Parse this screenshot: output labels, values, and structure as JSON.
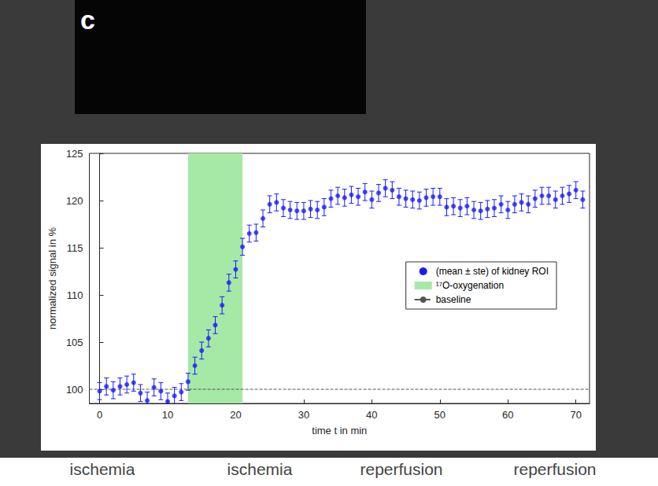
{
  "chart_data": {
    "type": "scatter",
    "panel_label": "c",
    "xlabel": "time t in min",
    "ylabel": "normalized signal in %",
    "x": [
      0,
      1,
      2,
      3,
      4,
      5,
      6,
      7,
      8,
      9,
      10,
      11,
      12,
      13,
      14,
      15,
      16,
      17,
      18,
      19,
      20,
      21,
      22,
      23,
      24,
      25,
      26,
      27,
      28,
      29,
      30,
      31,
      32,
      33,
      34,
      35,
      36,
      37,
      38,
      39,
      40,
      41,
      42,
      43,
      44,
      45,
      46,
      47,
      48,
      49,
      50,
      51,
      52,
      53,
      54,
      55,
      56,
      57,
      58,
      59,
      60,
      61,
      62,
      63,
      64,
      65,
      66,
      67,
      68,
      69,
      70,
      71
    ],
    "series": [
      {
        "name": "(mean ± ste) of kidney ROI",
        "color": "#1a1aff",
        "marker": "circle",
        "values": [
          99.8,
          100.3,
          99.9,
          100.3,
          100.5,
          100.7,
          99.6,
          98.8,
          100.2,
          99.8,
          98.7,
          99.3,
          99.7,
          100.8,
          102.5,
          104.1,
          105.4,
          106.8,
          108.9,
          111.3,
          112.7,
          115.1,
          116.5,
          116.6,
          118.1,
          119.6,
          119.8,
          119.2,
          119.0,
          118.9,
          118.9,
          119.1,
          119.0,
          119.3,
          120.2,
          120.5,
          120.3,
          120.6,
          120.4,
          120.9,
          120.1,
          120.8,
          121.3,
          121.1,
          120.4,
          120.2,
          120.1,
          120.0,
          120.3,
          120.4,
          120.4,
          119.3,
          119.4,
          119.2,
          119.4,
          119.0,
          118.9,
          119.1,
          119.2,
          119.6,
          119.0,
          119.6,
          119.8,
          119.6,
          120.2,
          120.5,
          120.5,
          120.1,
          120.5,
          120.7,
          121.1,
          120.1
        ],
        "errors": [
          0.9,
          0.9,
          0.9,
          0.9,
          0.9,
          0.9,
          0.9,
          0.9,
          0.9,
          0.9,
          0.9,
          0.9,
          0.9,
          0.9,
          0.9,
          0.9,
          0.9,
          0.9,
          0.9,
          0.9,
          0.9,
          0.9,
          0.9,
          0.9,
          0.9,
          0.9,
          0.9,
          0.9,
          0.9,
          0.9,
          0.9,
          0.9,
          0.9,
          0.9,
          0.9,
          0.9,
          0.9,
          0.9,
          0.9,
          0.9,
          0.9,
          0.9,
          0.9,
          0.9,
          0.9,
          0.9,
          0.9,
          0.9,
          0.9,
          0.9,
          0.9,
          0.9,
          0.9,
          0.9,
          0.9,
          0.9,
          0.9,
          0.9,
          0.9,
          0.9,
          0.9,
          0.9,
          0.9,
          0.9,
          0.9,
          0.9,
          0.9,
          0.9,
          0.9,
          0.9,
          0.9,
          0.9
        ]
      }
    ],
    "bands": [
      {
        "name": "¹⁷O-oxygenation",
        "x": [
          13,
          21
        ],
        "color": "#a6e8a6"
      }
    ],
    "reference_lines": [
      {
        "name": "baseline",
        "y": 100,
        "color": "#555555",
        "line_style": "dashed"
      }
    ],
    "xlim": [
      -1.5,
      72
    ],
    "xticks": [
      0,
      10,
      20,
      30,
      40,
      50,
      60,
      70
    ],
    "ylim": [
      98.5,
      125
    ],
    "yticks": [
      100,
      105,
      110,
      115,
      120,
      125
    ],
    "grid": false,
    "legend": "right",
    "annotations": [
      "ischemia",
      "ischemia",
      "reperfusion",
      "reperfusion"
    ]
  }
}
